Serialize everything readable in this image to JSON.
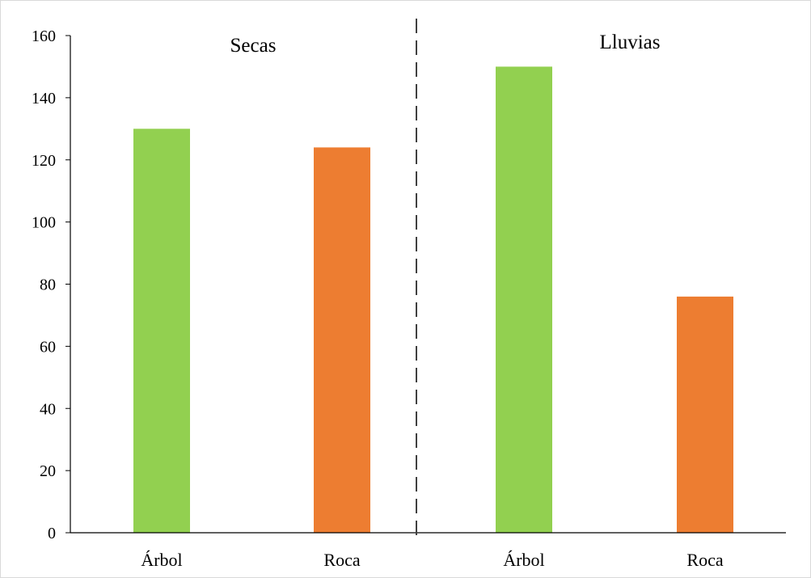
{
  "chart_data": {
    "type": "bar",
    "title": "",
    "xlabel": "",
    "ylabel": "",
    "ylim": [
      0,
      160
    ],
    "yticks": [
      0,
      20,
      40,
      60,
      80,
      100,
      120,
      140,
      160
    ],
    "grid": false,
    "legend": "none",
    "groups": [
      {
        "label": "Secas",
        "categories": [
          "Árbol",
          "Roca"
        ],
        "values": [
          130,
          124
        ]
      },
      {
        "label": "Lluvias",
        "categories": [
          "Árbol",
          "Roca"
        ],
        "values": [
          150,
          76
        ]
      }
    ],
    "colors": {
      "Árbol": "#92d050",
      "Roca": "#ed7d31",
      "axis": "#000000",
      "separator": "#404040"
    }
  }
}
